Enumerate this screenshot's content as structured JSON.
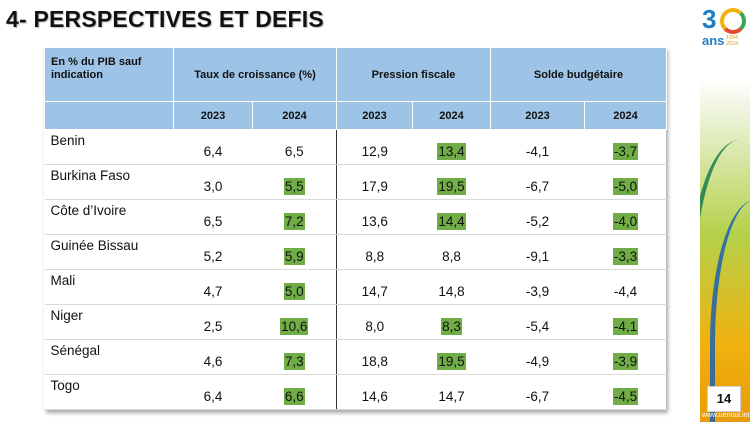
{
  "title": "4- PERSPECTIVES ET DEFIS",
  "table": {
    "corner_label": "En % du PIB sauf indication",
    "groups": [
      "Taux de croissance (%)",
      "Pression fiscale",
      "Solde budgétaire"
    ],
    "years": [
      "2023",
      "2024",
      "2023",
      "2024",
      "2023",
      "2024"
    ],
    "rows": [
      {
        "country": "Benin",
        "values": [
          "6,4",
          "6,5",
          "12,9",
          "13,4",
          "-4,1",
          "-3,7"
        ],
        "highlight": [
          false,
          false,
          false,
          true,
          false,
          true
        ]
      },
      {
        "country": "Burkina Faso",
        "values": [
          "3,0",
          "5,5",
          "17,9",
          "19,5",
          "-6,7",
          "-5,0"
        ],
        "highlight": [
          false,
          true,
          false,
          true,
          false,
          true
        ]
      },
      {
        "country": "Côte d’Ivoire",
        "values": [
          "6,5",
          "7,2",
          "13,6",
          "14,4",
          "-5,2",
          "-4,0"
        ],
        "highlight": [
          false,
          true,
          false,
          true,
          false,
          true
        ]
      },
      {
        "country": "Guinée Bissau",
        "values": [
          "5,2",
          "5,9",
          "8,8",
          "8,8",
          "-9,1",
          "-3,3"
        ],
        "highlight": [
          false,
          true,
          false,
          false,
          false,
          true
        ]
      },
      {
        "country": "Mali",
        "values": [
          "4,7",
          "5,0",
          "14,7",
          "14,8",
          "-3,9",
          "-4,4"
        ],
        "highlight": [
          false,
          true,
          false,
          false,
          false,
          false
        ]
      },
      {
        "country": "Niger",
        "values": [
          "2,5",
          "10,6",
          "8,0",
          "8,3",
          "-5,4",
          "-4,1"
        ],
        "highlight": [
          false,
          true,
          false,
          true,
          false,
          true
        ]
      },
      {
        "country": "Sénégal",
        "values": [
          "4,6",
          "7,3",
          "18,8",
          "19,5",
          "-4,9",
          "-3,9"
        ],
        "highlight": [
          false,
          true,
          false,
          true,
          false,
          true
        ]
      },
      {
        "country": "Togo",
        "values": [
          "6,4",
          "6,6",
          "14,6",
          "14,7",
          "-6,7",
          "-4,5"
        ],
        "highlight": [
          false,
          true,
          false,
          false,
          false,
          true
        ]
      }
    ],
    "highlight_color": "#70ad47",
    "header_color": "#9dc3e6"
  },
  "logo": {
    "number": "3",
    "ans": "ans",
    "years": "1994\n2024"
  },
  "page_number": "14",
  "website": "www.uemoa.int"
}
